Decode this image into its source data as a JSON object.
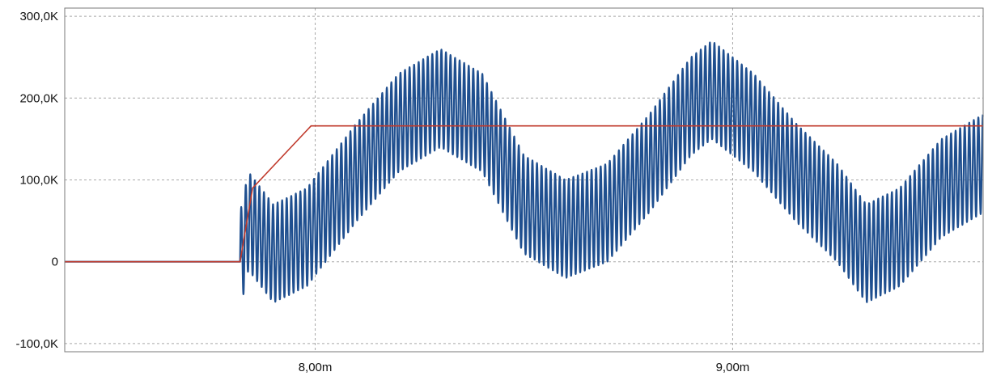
{
  "chart_data": {
    "type": "line",
    "title": "",
    "xlabel": "",
    "ylabel": "",
    "xlim": [
      7.4,
      9.6
    ],
    "ylim": [
      -110000,
      310000
    ],
    "grid": true,
    "x_ticks": [
      {
        "value": 8.0,
        "label": "8,00m"
      },
      {
        "value": 9.0,
        "label": "9,00m"
      }
    ],
    "y_ticks": [
      {
        "value": 300000,
        "label": "300,0K"
      },
      {
        "value": 200000,
        "label": "200,0K"
      },
      {
        "value": 100000,
        "label": "100,0K"
      },
      {
        "value": 0,
        "label": "0"
      },
      {
        "value": -100000,
        "label": "-100,0K"
      }
    ],
    "series": [
      {
        "color": "#1f4f8f",
        "start_x": 7.82,
        "ripple_period": 0.0109,
        "ripple_amplitude": 60000,
        "envelope": {
          "x": [
            7.4,
            7.82,
            7.84,
            7.9,
            7.98,
            8.1,
            8.2,
            8.3,
            8.4,
            8.5,
            8.6,
            8.7,
            8.8,
            8.9,
            8.95,
            9.05,
            9.15,
            9.25,
            9.32,
            9.4,
            9.5,
            9.6
          ],
          "y": [
            0,
            0,
            50000,
            10000,
            30000,
            110000,
            170000,
            200000,
            170000,
            70000,
            40000,
            60000,
            120000,
            190000,
            210000,
            170000,
            110000,
            60000,
            10000,
            30000,
            90000,
            120000
          ]
        }
      },
      {
        "color": "#c0392b",
        "x": [
          7.4,
          7.82,
          7.85,
          7.99,
          9.6
        ],
        "y": [
          0,
          0,
          90000,
          166000,
          166000
        ]
      }
    ]
  }
}
